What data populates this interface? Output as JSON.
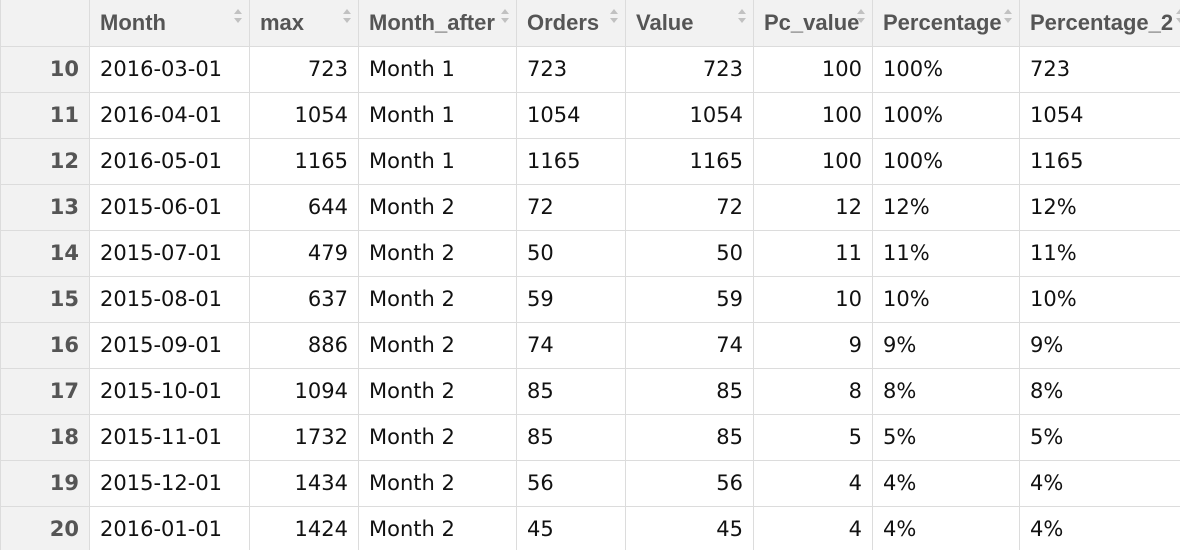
{
  "table": {
    "columns": [
      {
        "label": "Month",
        "align": "left"
      },
      {
        "label": "max",
        "align": "right"
      },
      {
        "label": "Month_after",
        "align": "left"
      },
      {
        "label": "Orders",
        "align": "left"
      },
      {
        "label": "Value",
        "align": "right"
      },
      {
        "label": "Pc_value",
        "align": "right"
      },
      {
        "label": "Percentage",
        "align": "left"
      },
      {
        "label": "Percentage_2",
        "align": "left"
      }
    ],
    "rows": [
      {
        "id": "10",
        "cells": [
          "2016-03-01",
          "723",
          "Month 1",
          "723",
          "723",
          "100",
          "100%",
          "723"
        ]
      },
      {
        "id": "11",
        "cells": [
          "2016-04-01",
          "1054",
          "Month 1",
          "1054",
          "1054",
          "100",
          "100%",
          "1054"
        ]
      },
      {
        "id": "12",
        "cells": [
          "2016-05-01",
          "1165",
          "Month 1",
          "1165",
          "1165",
          "100",
          "100%",
          "1165"
        ]
      },
      {
        "id": "13",
        "cells": [
          "2015-06-01",
          "644",
          "Month 2",
          "72",
          "72",
          "12",
          "12%",
          "12%"
        ]
      },
      {
        "id": "14",
        "cells": [
          "2015-07-01",
          "479",
          "Month 2",
          "50",
          "50",
          "11",
          "11%",
          "11%"
        ]
      },
      {
        "id": "15",
        "cells": [
          "2015-08-01",
          "637",
          "Month 2",
          "59",
          "59",
          "10",
          "10%",
          "10%"
        ]
      },
      {
        "id": "16",
        "cells": [
          "2015-09-01",
          "886",
          "Month 2",
          "74",
          "74",
          "9",
          "9%",
          "9%"
        ]
      },
      {
        "id": "17",
        "cells": [
          "2015-10-01",
          "1094",
          "Month 2",
          "85",
          "85",
          "8",
          "8%",
          "8%"
        ]
      },
      {
        "id": "18",
        "cells": [
          "2015-11-01",
          "1732",
          "Month 2",
          "85",
          "85",
          "5",
          "5%",
          "5%"
        ]
      },
      {
        "id": "19",
        "cells": [
          "2015-12-01",
          "1434",
          "Month 2",
          "56",
          "56",
          "4",
          "4%",
          "4%"
        ]
      },
      {
        "id": "20",
        "cells": [
          "2016-01-01",
          "1424",
          "Month 2",
          "45",
          "45",
          "4",
          "4%",
          "4%"
        ]
      }
    ]
  },
  "icons": {
    "sort": "sort-arrows-icon"
  },
  "colors": {
    "header_bg": "#f2f2f2",
    "grid": "#dcdcdc",
    "text": "#111111",
    "header_text": "#555555"
  }
}
